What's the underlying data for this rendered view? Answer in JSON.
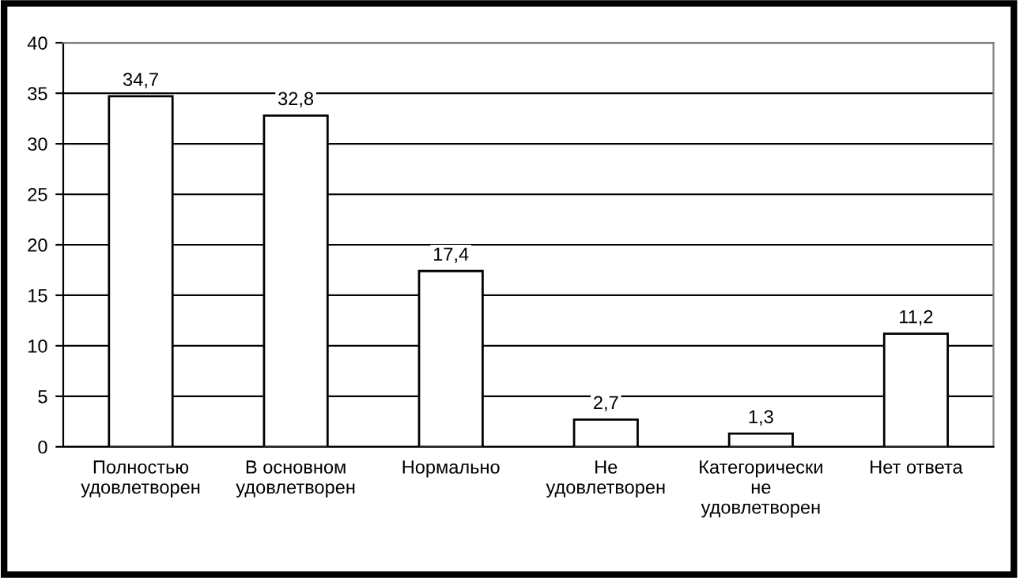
{
  "chart_data": {
    "type": "bar",
    "categories": [
      "Полностью\nудовлетворен",
      "В основном\nудовлетворен",
      "Нормально",
      "Не\nудовлетворен",
      "Категорически\nне\nудовлетворен",
      "Нет ответа"
    ],
    "values": [
      34.7,
      32.8,
      17.4,
      2.7,
      1.3,
      11.2
    ],
    "value_labels": [
      "34,7",
      "32,8",
      "17,4",
      "2,7",
      "1,3",
      "11,2"
    ],
    "color": "#ffffff",
    "ylim": [
      0,
      40
    ],
    "yticks": [
      0,
      5,
      10,
      15,
      20,
      25,
      30,
      35,
      40
    ],
    "grid": "y",
    "legend": false
  }
}
